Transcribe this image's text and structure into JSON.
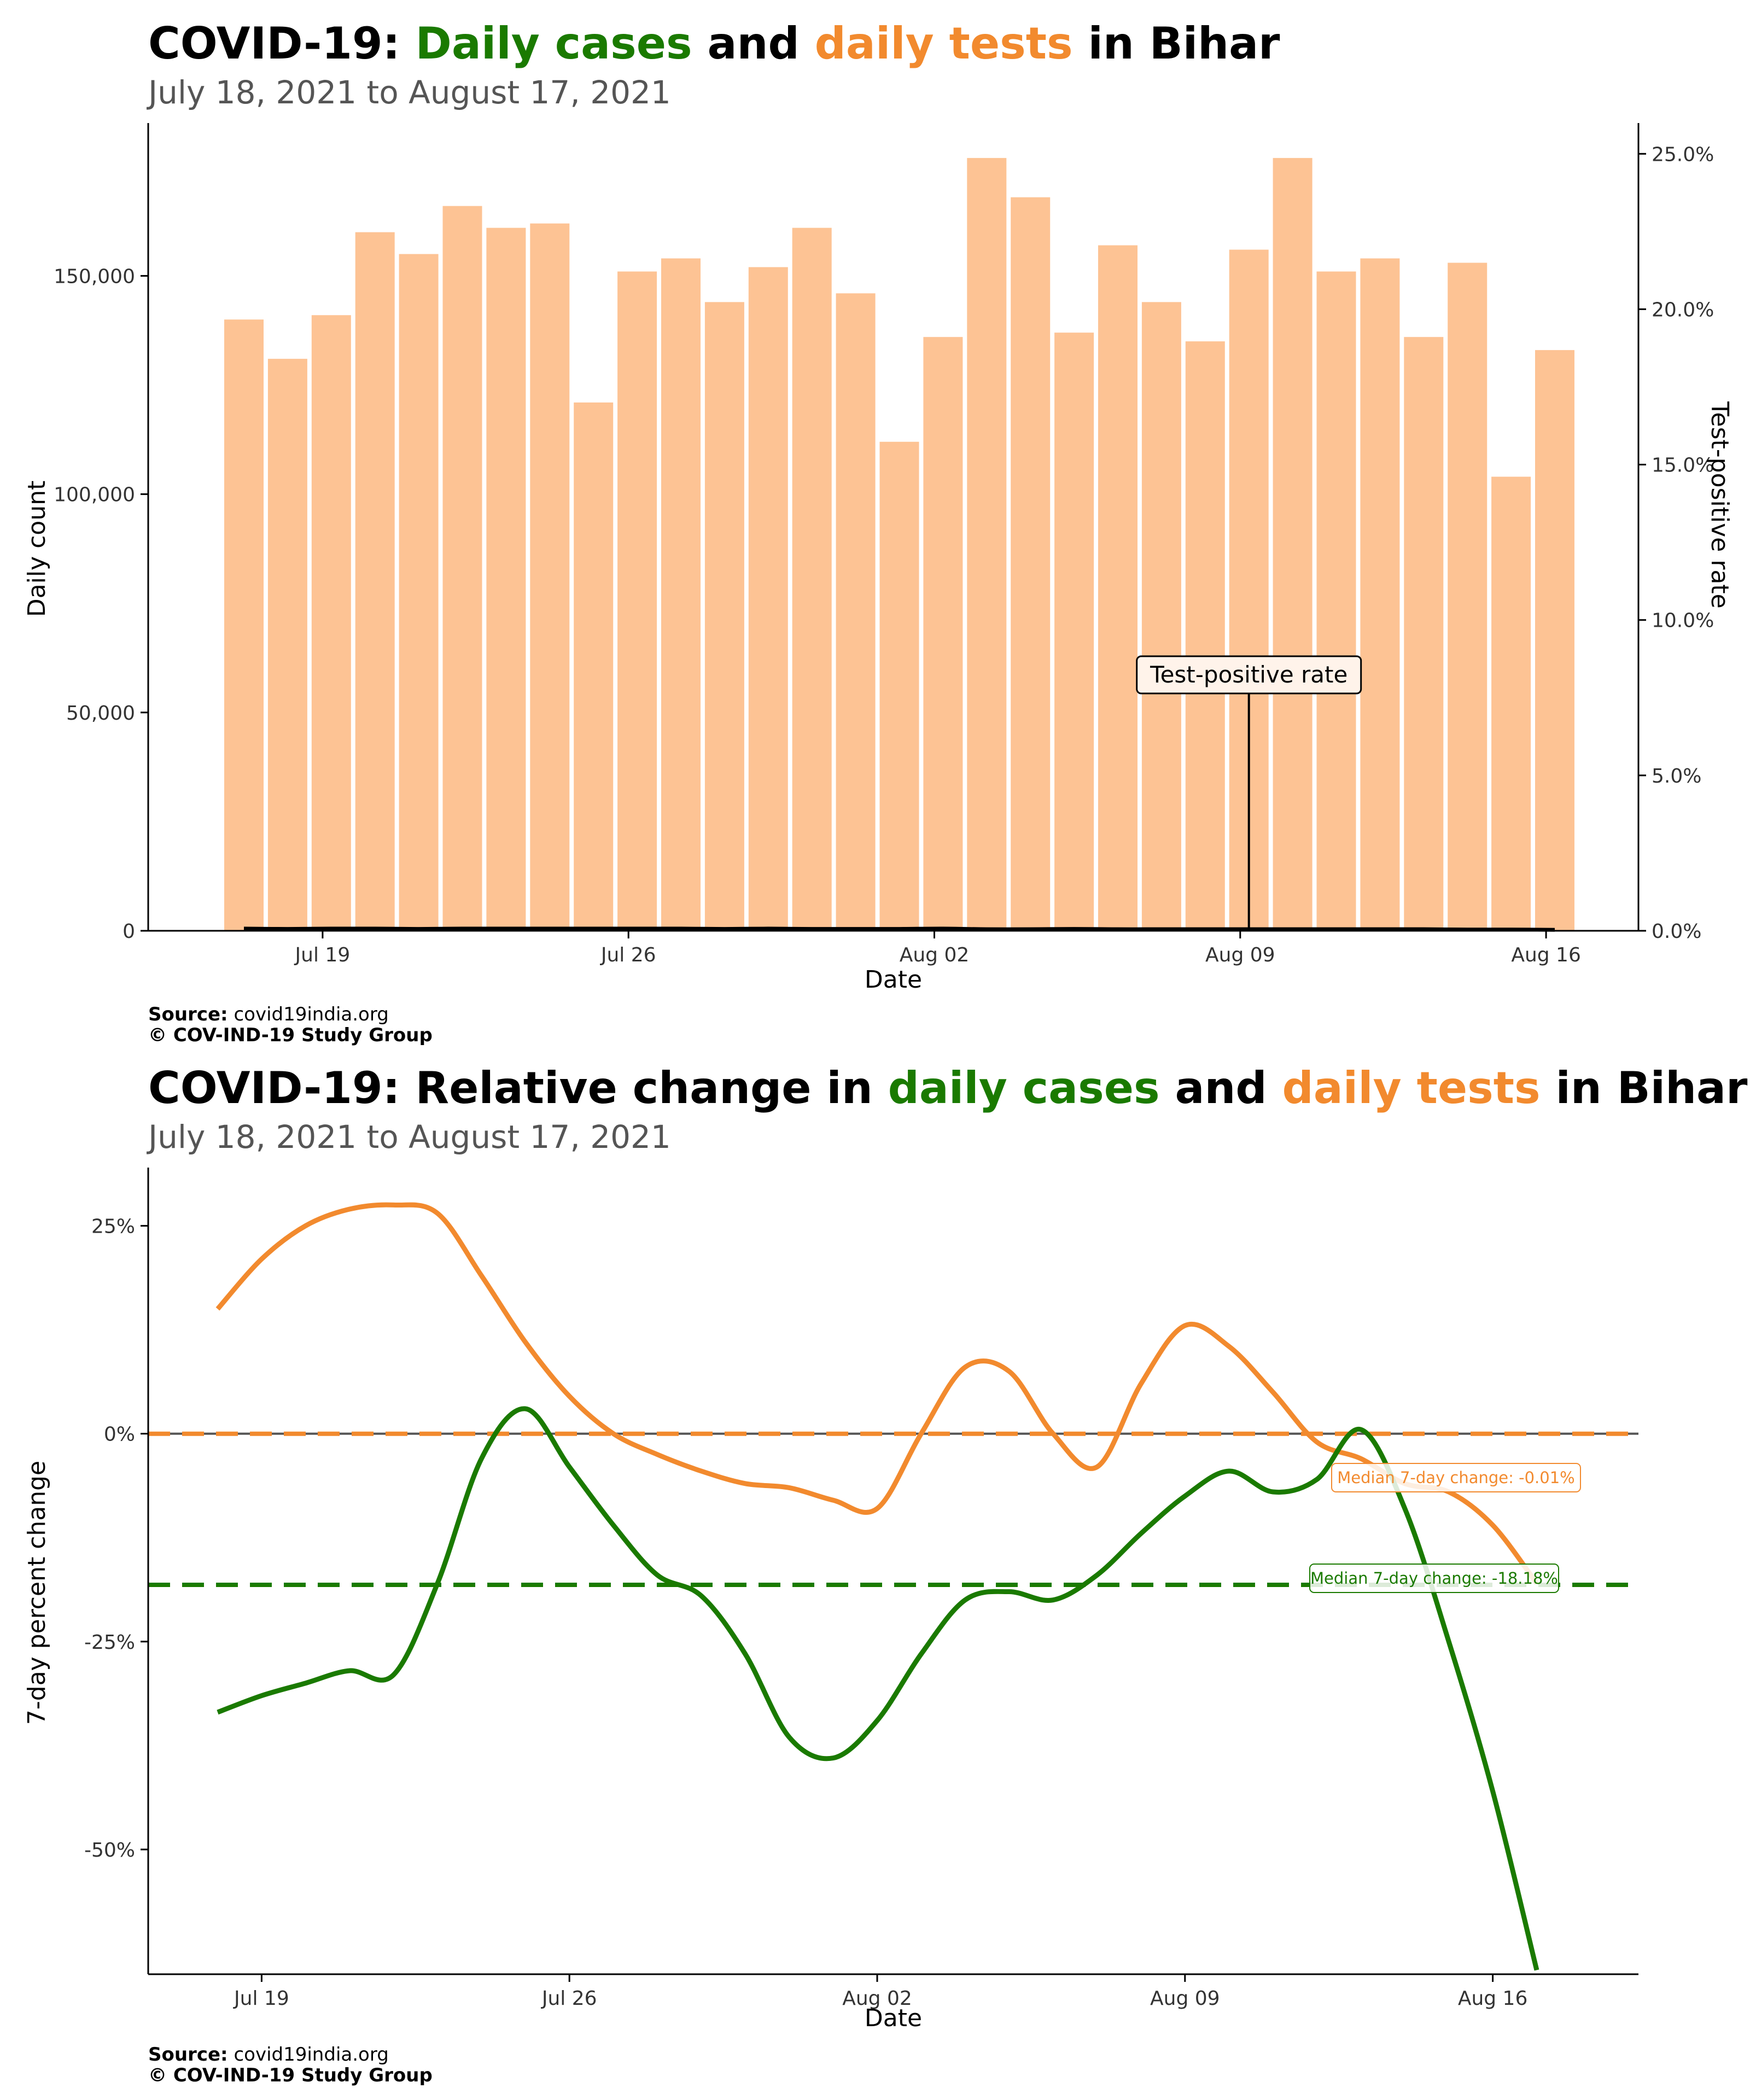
{
  "chart_data": [
    {
      "type": "bar",
      "title_parts": [
        "COVID-19: ",
        "Daily cases",
        " and ",
        "daily tests",
        " in Bihar"
      ],
      "subtitle": "July 18, 2021 to August 17, 2021",
      "xlabel": "Date",
      "ylabel": "Daily count",
      "y2label": "Test-positive rate",
      "ylim": [
        0,
        185000
      ],
      "y2lim": [
        0,
        0.2599
      ],
      "yticks": [
        "0",
        "50,000",
        "100,000",
        "150,000"
      ],
      "y2ticks": [
        "0.0%",
        "5.0%",
        "10.0%",
        "15.0%",
        "20.0%",
        "25.0%"
      ],
      "xticks": [
        "Jul 19",
        "Jul 26",
        "Aug 02",
        "Aug 09",
        "Aug 16"
      ],
      "grid": false,
      "dates": [
        "2021-07-18",
        "2021-07-19",
        "2021-07-20",
        "2021-07-21",
        "2021-07-22",
        "2021-07-23",
        "2021-07-24",
        "2021-07-25",
        "2021-07-26",
        "2021-07-27",
        "2021-07-28",
        "2021-07-29",
        "2021-07-30",
        "2021-07-31",
        "2021-08-01",
        "2021-08-02",
        "2021-08-03",
        "2021-08-04",
        "2021-08-05",
        "2021-08-06",
        "2021-08-07",
        "2021-08-08",
        "2021-08-09",
        "2021-08-10",
        "2021-08-11",
        "2021-08-12",
        "2021-08-13",
        "2021-08-14",
        "2021-08-15",
        "2021-08-16",
        "2021-08-17"
      ],
      "series": [
        {
          "name": "daily tests",
          "color": "#fdc394",
          "values": [
            140000,
            131000,
            141000,
            160000,
            155000,
            166000,
            161000,
            162000,
            121000,
            151000,
            154000,
            144000,
            152000,
            161000,
            146000,
            112000,
            136000,
            177000,
            168000,
            137000,
            157000,
            144000,
            135000,
            156000,
            177000,
            151000,
            154000,
            136000,
            153000,
            104000,
            133000
          ]
        },
        {
          "name": "Test-positive rate",
          "color": "#000000",
          "values": [
            0.0007,
            0.0006,
            0.0007,
            0.0007,
            0.0006,
            0.0007,
            0.0007,
            0.0007,
            0.0007,
            0.0007,
            0.0007,
            0.0006,
            0.0007,
            0.0006,
            0.0006,
            0.0006,
            0.0007,
            0.0005,
            0.0005,
            0.0006,
            0.0005,
            0.0005,
            0.0005,
            0.0005,
            0.0005,
            0.0005,
            0.0005,
            0.0005,
            0.0004,
            0.0004,
            0.0003
          ]
        }
      ],
      "annotation": {
        "label": "Test-positive rate",
        "date": "2021-08-10"
      },
      "source_label": "Source:",
      "source": "covid19india.org",
      "copyright": "© COV-IND-19 Study Group"
    },
    {
      "type": "line",
      "title_parts": [
        "COVID-19: Relative change in ",
        "daily cases",
        " and ",
        "daily tests",
        " in Bihar"
      ],
      "subtitle": "July 18, 2021 to August 17, 2021",
      "xlabel": "Date",
      "ylabel": "7-day percent change",
      "ylim": [
        -0.65,
        0.32
      ],
      "yticks": [
        "-50%",
        "-25%",
        "0%",
        "25%"
      ],
      "xticks": [
        "Jul 19",
        "Jul 26",
        "Aug 02",
        "Aug 09",
        "Aug 16"
      ],
      "grid": false,
      "dates": [
        "2021-07-18",
        "2021-07-19",
        "2021-07-20",
        "2021-07-21",
        "2021-07-22",
        "2021-07-23",
        "2021-07-24",
        "2021-07-25",
        "2021-07-26",
        "2021-07-27",
        "2021-07-28",
        "2021-07-29",
        "2021-07-30",
        "2021-07-31",
        "2021-08-01",
        "2021-08-02",
        "2021-08-03",
        "2021-08-04",
        "2021-08-05",
        "2021-08-06",
        "2021-08-07",
        "2021-08-08",
        "2021-08-09",
        "2021-08-10",
        "2021-08-11",
        "2021-08-12",
        "2021-08-13",
        "2021-08-14",
        "2021-08-15",
        "2021-08-16",
        "2021-08-17"
      ],
      "series": [
        {
          "name": "daily tests",
          "color": "#f28a2e",
          "values": [
            0.15,
            0.21,
            0.25,
            0.27,
            0.275,
            0.265,
            0.19,
            0.11,
            0.045,
            0.0,
            -0.025,
            -0.045,
            -0.06,
            -0.065,
            -0.08,
            -0.09,
            0.0,
            0.08,
            0.075,
            0.0,
            -0.04,
            0.06,
            0.13,
            0.105,
            0.05,
            -0.01,
            -0.03,
            -0.06,
            -0.07,
            -0.11,
            -0.18
          ]
        },
        {
          "name": "daily cases",
          "color": "#1a7a00",
          "values": [
            -0.335,
            -0.315,
            -0.3,
            -0.285,
            -0.29,
            -0.18,
            -0.03,
            0.03,
            -0.04,
            -0.11,
            -0.17,
            -0.195,
            -0.265,
            -0.365,
            -0.39,
            -0.345,
            -0.265,
            -0.2,
            -0.19,
            -0.2,
            -0.17,
            -0.12,
            -0.075,
            -0.045,
            -0.07,
            -0.055,
            0.005,
            -0.09,
            -0.25,
            -0.43,
            -0.645
          ]
        }
      ],
      "reference_lines": [
        {
          "label": "Median 7-day change: -0.01%",
          "value": -0.0001,
          "color": "#f28a2e"
        },
        {
          "label": "Median 7-day change: -18.18%",
          "value": -0.1818,
          "color": "#1a7a00"
        }
      ],
      "source_label": "Source:",
      "source": "covid19india.org",
      "copyright": "© COV-IND-19 Study Group"
    }
  ]
}
